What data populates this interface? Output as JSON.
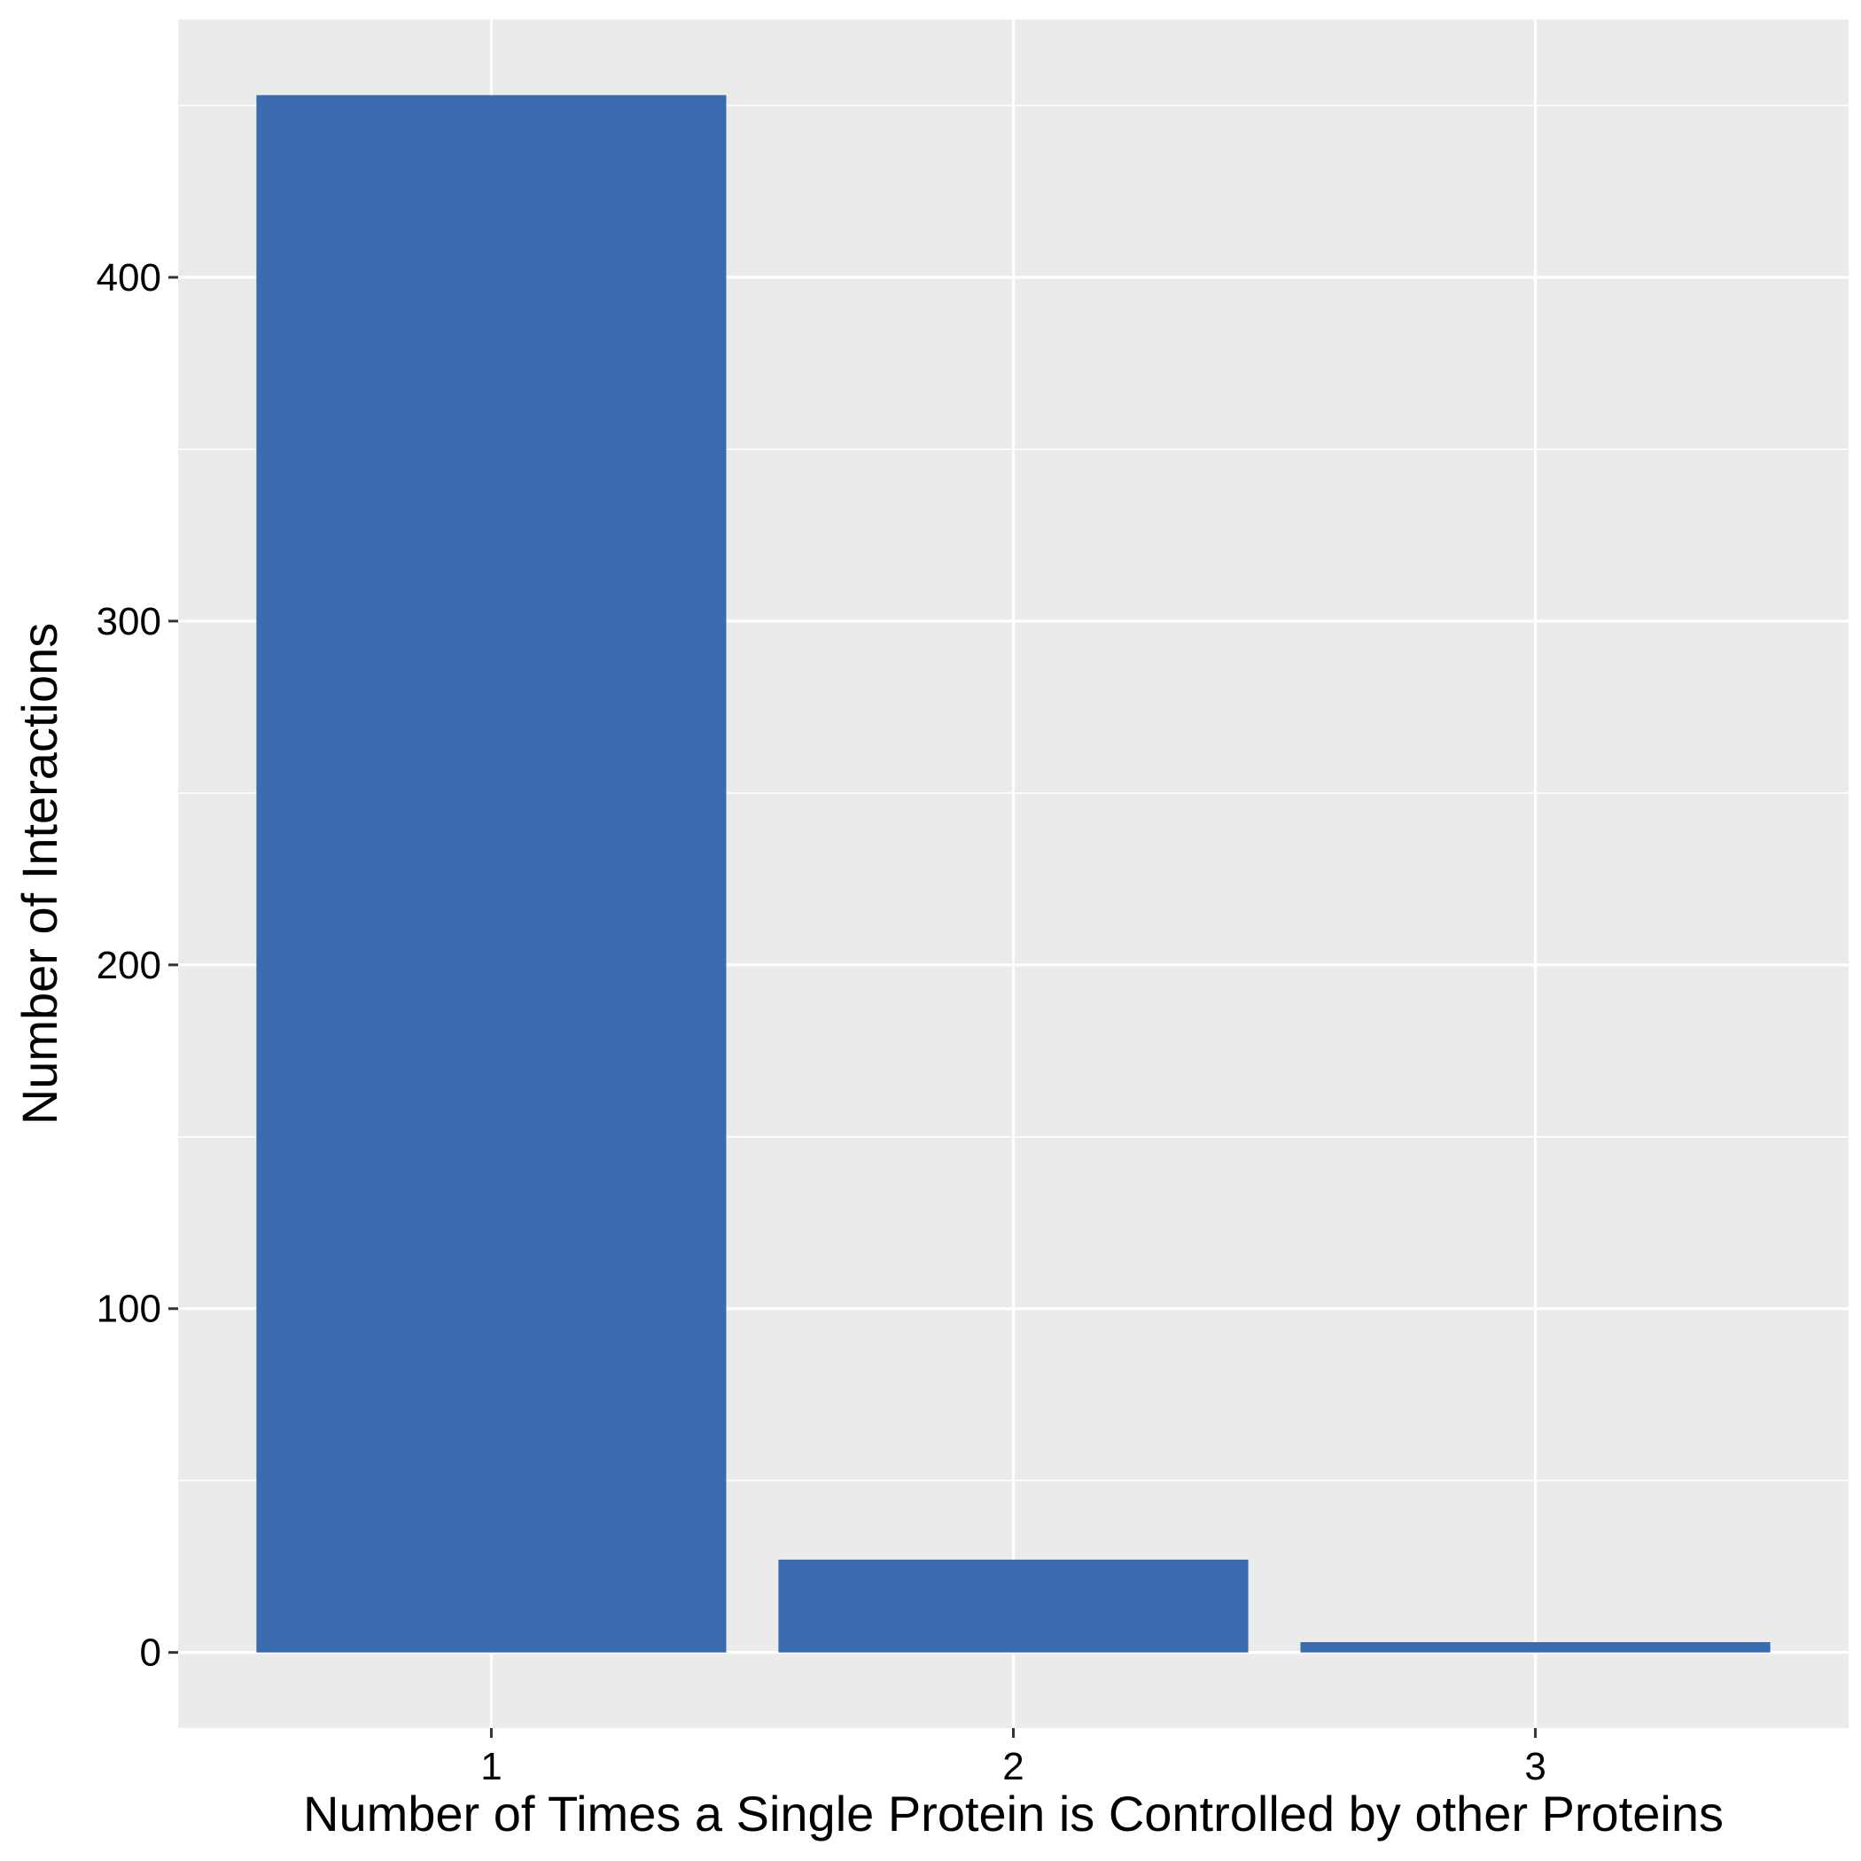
{
  "chart_data": {
    "type": "bar",
    "title": "",
    "xlabel": "Number of Times a Single Protein is Controlled by other Proteins",
    "ylabel": "Number of Interactions",
    "categories": [
      "1",
      "2",
      "3"
    ],
    "values": [
      453,
      27,
      3
    ],
    "ylim": [
      -22,
      475
    ],
    "yticks": [
      0,
      100,
      200,
      300,
      400
    ],
    "grid": true,
    "legend": "none",
    "colors": {
      "bar": "#3A6BAE",
      "panel": "#EBEBEB",
      "grid": "#FFFFFF",
      "tick": "#333333"
    }
  }
}
